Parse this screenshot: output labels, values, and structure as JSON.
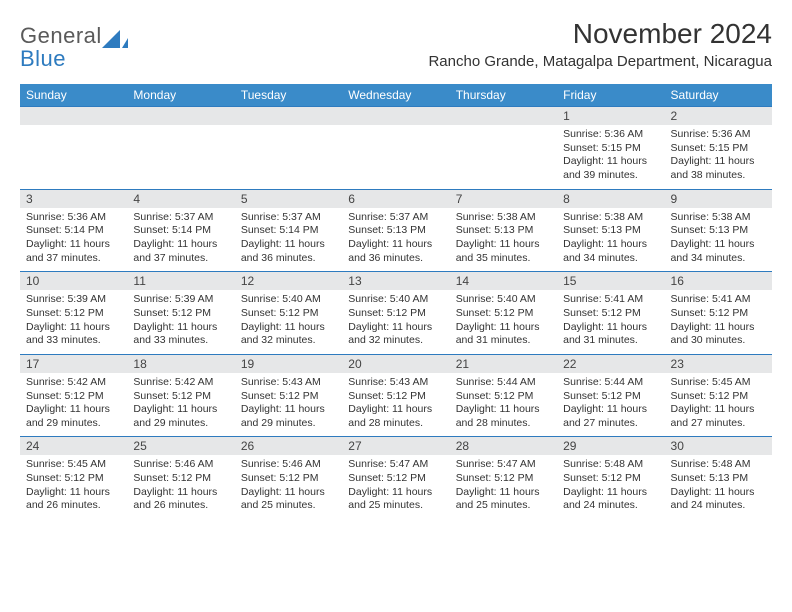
{
  "brand": {
    "line1": "General",
    "line2": "Blue"
  },
  "title": "November 2024",
  "location": "Rancho Grande, Matagalpa Department, Nicaragua",
  "colors": {
    "header_bg": "#3a8bc9",
    "rule": "#2e7bbf",
    "daybar_bg": "#e6e7e8",
    "brand_blue": "#2e7bbf",
    "brand_gray": "#5a5a5a"
  },
  "weekday_labels": [
    "Sunday",
    "Monday",
    "Tuesday",
    "Wednesday",
    "Thursday",
    "Friday",
    "Saturday"
  ],
  "weeks": [
    [
      null,
      null,
      null,
      null,
      null,
      {
        "n": "1",
        "sunrise": "5:36 AM",
        "sunset": "5:15 PM",
        "daylight": "11 hours and 39 minutes."
      },
      {
        "n": "2",
        "sunrise": "5:36 AM",
        "sunset": "5:15 PM",
        "daylight": "11 hours and 38 minutes."
      }
    ],
    [
      {
        "n": "3",
        "sunrise": "5:36 AM",
        "sunset": "5:14 PM",
        "daylight": "11 hours and 37 minutes."
      },
      {
        "n": "4",
        "sunrise": "5:37 AM",
        "sunset": "5:14 PM",
        "daylight": "11 hours and 37 minutes."
      },
      {
        "n": "5",
        "sunrise": "5:37 AM",
        "sunset": "5:14 PM",
        "daylight": "11 hours and 36 minutes."
      },
      {
        "n": "6",
        "sunrise": "5:37 AM",
        "sunset": "5:13 PM",
        "daylight": "11 hours and 36 minutes."
      },
      {
        "n": "7",
        "sunrise": "5:38 AM",
        "sunset": "5:13 PM",
        "daylight": "11 hours and 35 minutes."
      },
      {
        "n": "8",
        "sunrise": "5:38 AM",
        "sunset": "5:13 PM",
        "daylight": "11 hours and 34 minutes."
      },
      {
        "n": "9",
        "sunrise": "5:38 AM",
        "sunset": "5:13 PM",
        "daylight": "11 hours and 34 minutes."
      }
    ],
    [
      {
        "n": "10",
        "sunrise": "5:39 AM",
        "sunset": "5:12 PM",
        "daylight": "11 hours and 33 minutes."
      },
      {
        "n": "11",
        "sunrise": "5:39 AM",
        "sunset": "5:12 PM",
        "daylight": "11 hours and 33 minutes."
      },
      {
        "n": "12",
        "sunrise": "5:40 AM",
        "sunset": "5:12 PM",
        "daylight": "11 hours and 32 minutes."
      },
      {
        "n": "13",
        "sunrise": "5:40 AM",
        "sunset": "5:12 PM",
        "daylight": "11 hours and 32 minutes."
      },
      {
        "n": "14",
        "sunrise": "5:40 AM",
        "sunset": "5:12 PM",
        "daylight": "11 hours and 31 minutes."
      },
      {
        "n": "15",
        "sunrise": "5:41 AM",
        "sunset": "5:12 PM",
        "daylight": "11 hours and 31 minutes."
      },
      {
        "n": "16",
        "sunrise": "5:41 AM",
        "sunset": "5:12 PM",
        "daylight": "11 hours and 30 minutes."
      }
    ],
    [
      {
        "n": "17",
        "sunrise": "5:42 AM",
        "sunset": "5:12 PM",
        "daylight": "11 hours and 29 minutes."
      },
      {
        "n": "18",
        "sunrise": "5:42 AM",
        "sunset": "5:12 PM",
        "daylight": "11 hours and 29 minutes."
      },
      {
        "n": "19",
        "sunrise": "5:43 AM",
        "sunset": "5:12 PM",
        "daylight": "11 hours and 29 minutes."
      },
      {
        "n": "20",
        "sunrise": "5:43 AM",
        "sunset": "5:12 PM",
        "daylight": "11 hours and 28 minutes."
      },
      {
        "n": "21",
        "sunrise": "5:44 AM",
        "sunset": "5:12 PM",
        "daylight": "11 hours and 28 minutes."
      },
      {
        "n": "22",
        "sunrise": "5:44 AM",
        "sunset": "5:12 PM",
        "daylight": "11 hours and 27 minutes."
      },
      {
        "n": "23",
        "sunrise": "5:45 AM",
        "sunset": "5:12 PM",
        "daylight": "11 hours and 27 minutes."
      }
    ],
    [
      {
        "n": "24",
        "sunrise": "5:45 AM",
        "sunset": "5:12 PM",
        "daylight": "11 hours and 26 minutes."
      },
      {
        "n": "25",
        "sunrise": "5:46 AM",
        "sunset": "5:12 PM",
        "daylight": "11 hours and 26 minutes."
      },
      {
        "n": "26",
        "sunrise": "5:46 AM",
        "sunset": "5:12 PM",
        "daylight": "11 hours and 25 minutes."
      },
      {
        "n": "27",
        "sunrise": "5:47 AM",
        "sunset": "5:12 PM",
        "daylight": "11 hours and 25 minutes."
      },
      {
        "n": "28",
        "sunrise": "5:47 AM",
        "sunset": "5:12 PM",
        "daylight": "11 hours and 25 minutes."
      },
      {
        "n": "29",
        "sunrise": "5:48 AM",
        "sunset": "5:12 PM",
        "daylight": "11 hours and 24 minutes."
      },
      {
        "n": "30",
        "sunrise": "5:48 AM",
        "sunset": "5:13 PM",
        "daylight": "11 hours and 24 minutes."
      }
    ]
  ],
  "labels": {
    "sunrise_prefix": "Sunrise: ",
    "sunset_prefix": "Sunset: ",
    "daylight_prefix": "Daylight: "
  }
}
